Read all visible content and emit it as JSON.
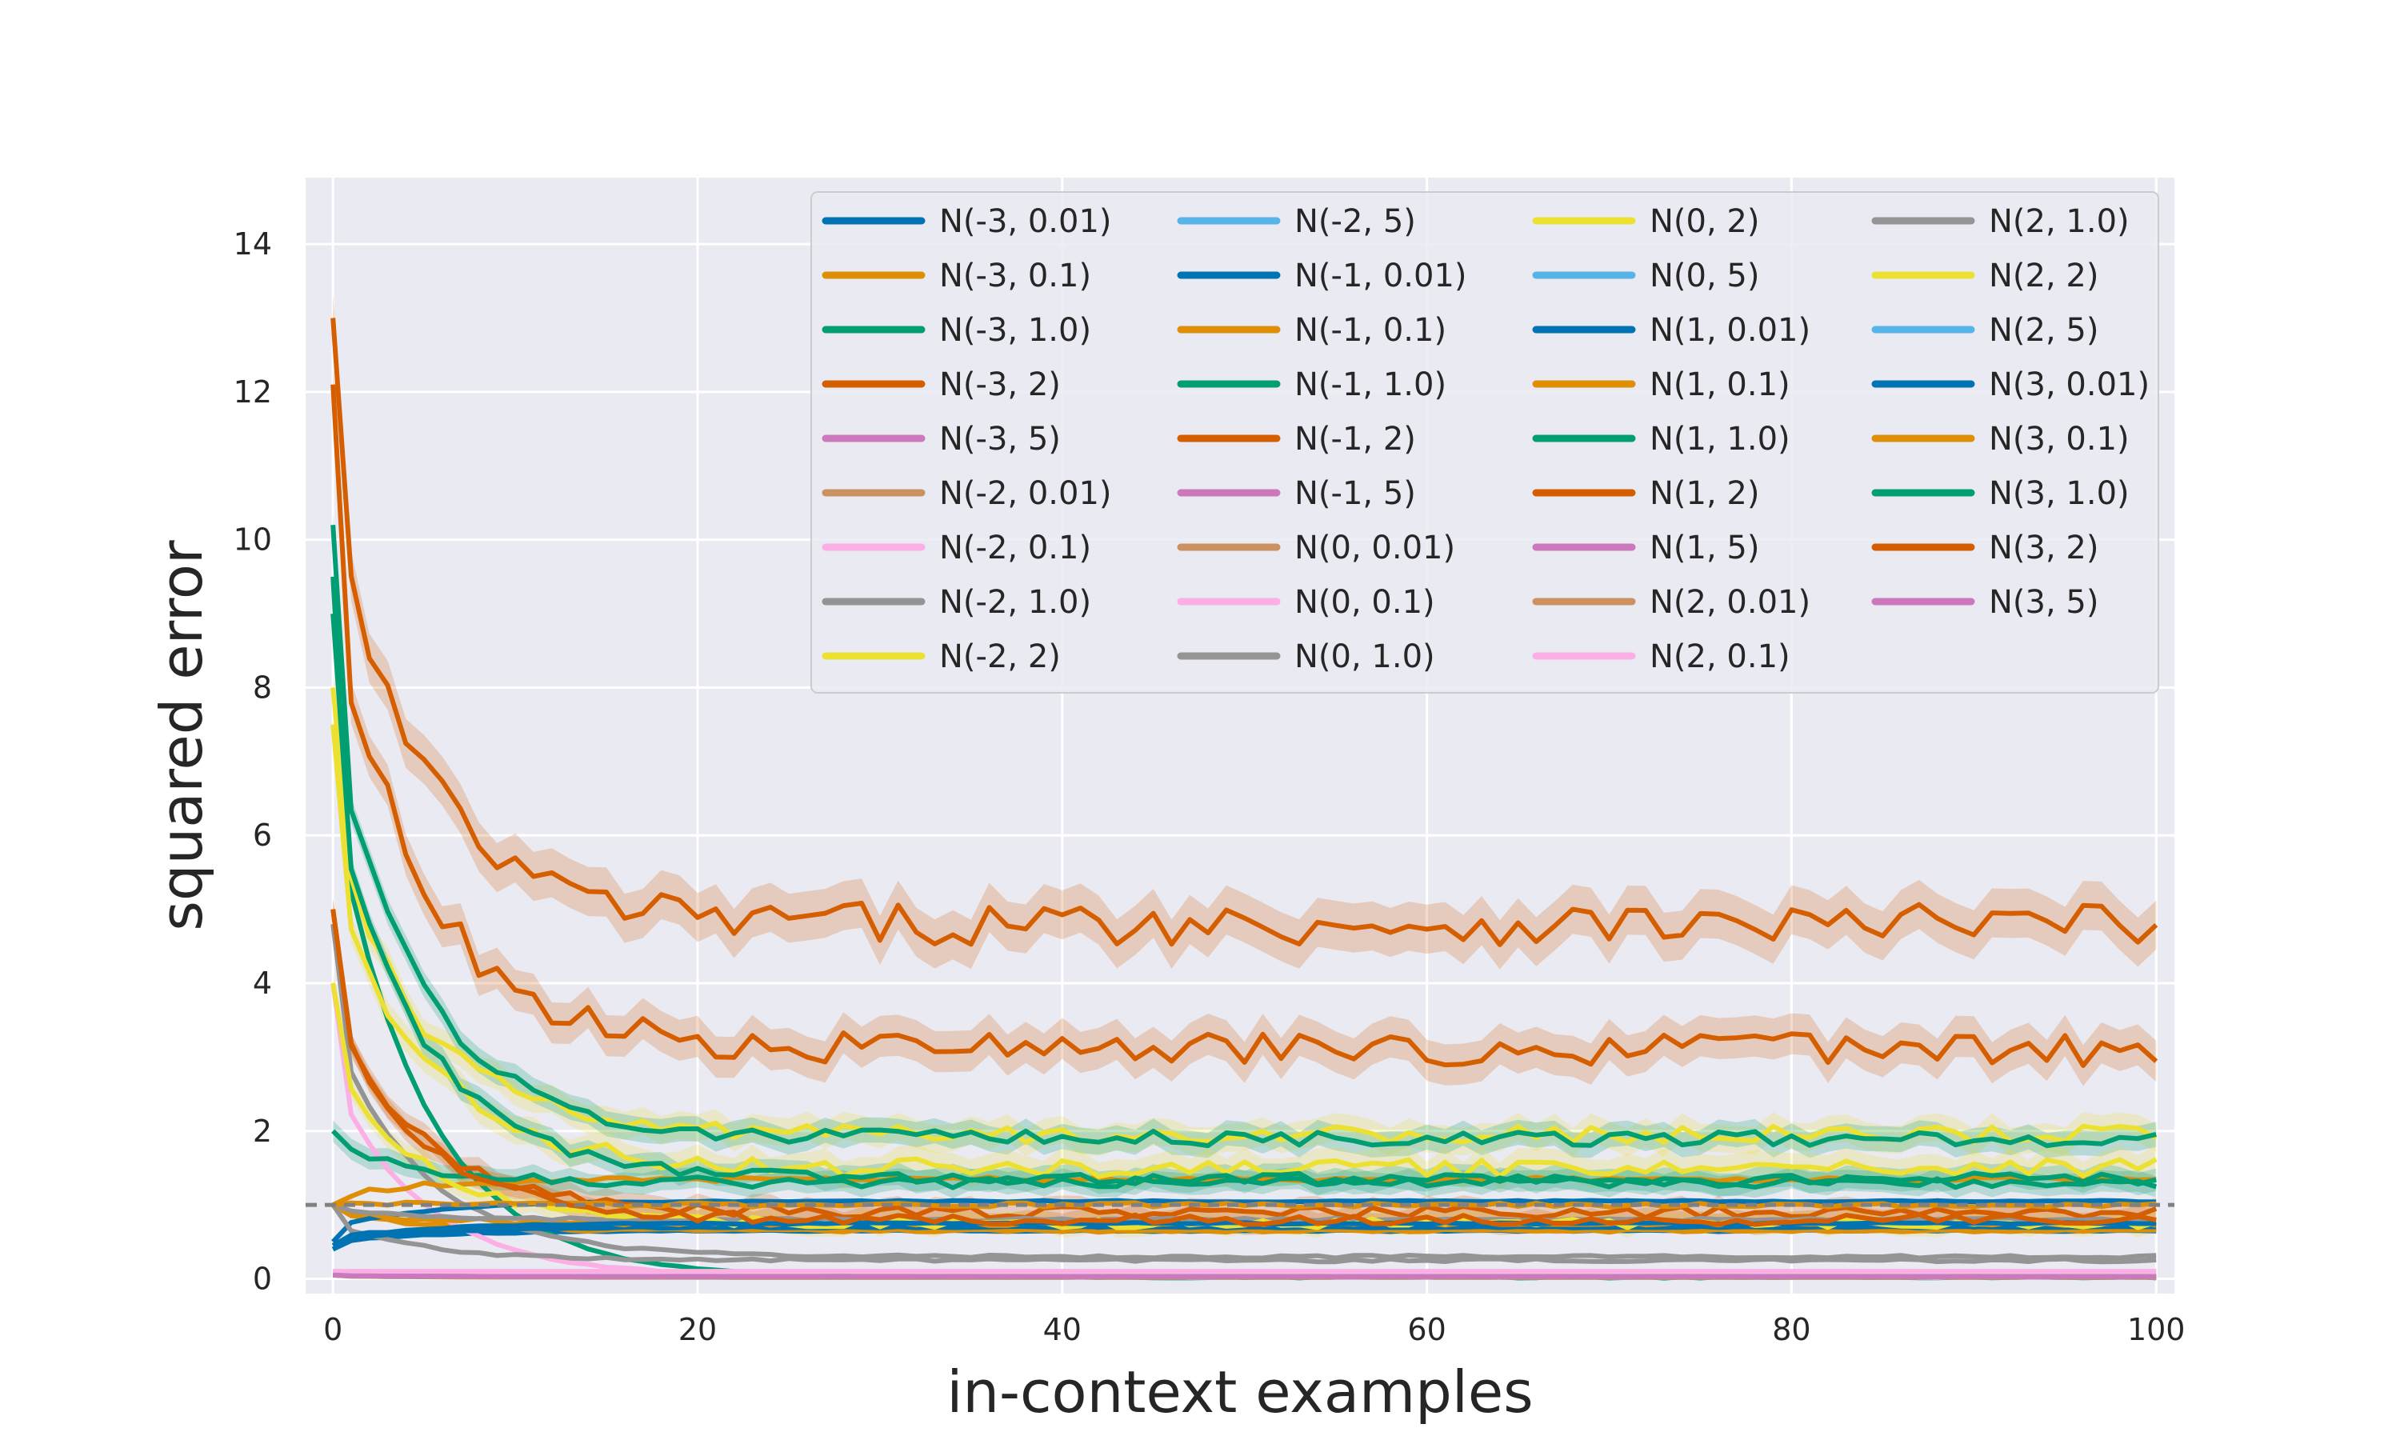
{
  "chart_data": {
    "type": "line",
    "title": "",
    "xlabel": "in-context examples",
    "ylabel": "squared error",
    "xlim": [
      -1.5,
      101
    ],
    "ylim": [
      -0.2,
      14.9
    ],
    "xticks": [
      0,
      20,
      40,
      60,
      80,
      100
    ],
    "yticks": [
      0,
      2,
      4,
      6,
      8,
      10,
      12,
      14
    ],
    "grid": true,
    "legend_position": "top-right",
    "legend_columns": 4,
    "reference_line": {
      "y": 1.0,
      "style": "dashed",
      "color": "#808080"
    },
    "series": [
      {
        "name": "N(-3, 0.01)",
        "color": "#0173b2",
        "start": 0.4,
        "end": 0.65,
        "noise": 0.01
      },
      {
        "name": "N(-3, 0.1)",
        "color": "#de8f05",
        "start": 1.0,
        "end": 0.65,
        "noise": 0.02
      },
      {
        "name": "N(-3, 1.0)",
        "color": "#029e73",
        "start": 9.5,
        "end": 0.02,
        "noise": 0.01
      },
      {
        "name": "N(-3, 2)",
        "color": "#d55e00",
        "start": 13.0,
        "end": 4.8,
        "noise": 0.28
      },
      {
        "name": "N(-3, 5)",
        "color": "#cc78bc",
        "start": 0.05,
        "end": 0.02,
        "noise": 0.0
      },
      {
        "name": "N(-2, 0.01)",
        "color": "#ca9161",
        "start": 0.05,
        "end": 0.02,
        "noise": 0.0
      },
      {
        "name": "N(-2, 0.1)",
        "color": "#fbafe4",
        "start": 4.0,
        "end": 0.03,
        "noise": 0.01
      },
      {
        "name": "N(-2, 1.0)",
        "color": "#949494",
        "start": 4.8,
        "end": 0.3,
        "noise": 0.02
      },
      {
        "name": "N(-2, 2)",
        "color": "#ece133",
        "start": 8.0,
        "end": 1.95,
        "noise": 0.12
      },
      {
        "name": "N(-2, 5)",
        "color": "#56b4e9",
        "start": 0.05,
        "end": 0.03,
        "noise": 0.0
      },
      {
        "name": "N(-1, 0.01)",
        "color": "#0173b2",
        "start": 0.5,
        "end": 1.05,
        "noise": 0.01
      },
      {
        "name": "N(-1, 0.1)",
        "color": "#de8f05",
        "start": 1.0,
        "end": 1.35,
        "noise": 0.03
      },
      {
        "name": "N(-1, 1.0)",
        "color": "#029e73",
        "start": 10.2,
        "end": 1.9,
        "noise": 0.1
      },
      {
        "name": "N(-1, 2)",
        "color": "#d55e00",
        "start": 12.1,
        "end": 3.1,
        "noise": 0.22
      },
      {
        "name": "N(-1, 5)",
        "color": "#cc78bc",
        "start": 0.05,
        "end": 0.03,
        "noise": 0.0
      },
      {
        "name": "N(0, 0.01)",
        "color": "#ca9161",
        "start": 0.05,
        "end": 0.03,
        "noise": 0.0
      },
      {
        "name": "N(0, 0.1)",
        "color": "#fbafe4",
        "start": 0.1,
        "end": 0.1,
        "noise": 0.0
      },
      {
        "name": "N(0, 1.0)",
        "color": "#949494",
        "start": 1.0,
        "end": 0.25,
        "noise": 0.02
      },
      {
        "name": "N(0, 2)",
        "color": "#ece133",
        "start": 7.5,
        "end": 1.5,
        "noise": 0.12
      },
      {
        "name": "N(0, 5)",
        "color": "#56b4e9",
        "start": 0.05,
        "end": 0.03,
        "noise": 0.0
      },
      {
        "name": "N(1, 0.01)",
        "color": "#0173b2",
        "start": 0.4,
        "end": 0.7,
        "noise": 0.01
      },
      {
        "name": "N(1, 0.1)",
        "color": "#de8f05",
        "start": 1.0,
        "end": 0.75,
        "noise": 0.03
      },
      {
        "name": "N(1, 1.0)",
        "color": "#029e73",
        "start": 9.0,
        "end": 1.35,
        "noise": 0.08
      },
      {
        "name": "N(1, 2)",
        "color": "#d55e00",
        "start": 5.0,
        "end": 0.9,
        "noise": 0.08
      },
      {
        "name": "N(1, 5)",
        "color": "#cc78bc",
        "start": 0.05,
        "end": 0.03,
        "noise": 0.0
      },
      {
        "name": "N(2, 0.01)",
        "color": "#ca9161",
        "start": 0.05,
        "end": 0.03,
        "noise": 0.0
      },
      {
        "name": "N(2, 0.1)",
        "color": "#fbafe4",
        "start": 0.1,
        "end": 0.1,
        "noise": 0.0
      },
      {
        "name": "N(2, 1.0)",
        "color": "#949494",
        "start": 1.0,
        "end": 0.8,
        "noise": 0.02
      },
      {
        "name": "N(2, 2)",
        "color": "#ece133",
        "start": 4.0,
        "end": 0.75,
        "noise": 0.06
      },
      {
        "name": "N(2, 5)",
        "color": "#56b4e9",
        "start": 0.05,
        "end": 0.03,
        "noise": 0.0
      },
      {
        "name": "N(3, 0.01)",
        "color": "#0173b2",
        "start": 0.45,
        "end": 0.75,
        "noise": 0.01
      },
      {
        "name": "N(3, 0.1)",
        "color": "#de8f05",
        "start": 1.0,
        "end": 1.0,
        "noise": 0.03
      },
      {
        "name": "N(3, 1.0)",
        "color": "#029e73",
        "start": 2.0,
        "end": 1.3,
        "noise": 0.07
      },
      {
        "name": "N(3, 2)",
        "color": "#d55e00",
        "start": 5.0,
        "end": 0.8,
        "noise": 0.07
      },
      {
        "name": "N(3, 5)",
        "color": "#cc78bc",
        "start": 0.05,
        "end": 0.03,
        "noise": 0.0
      }
    ]
  }
}
